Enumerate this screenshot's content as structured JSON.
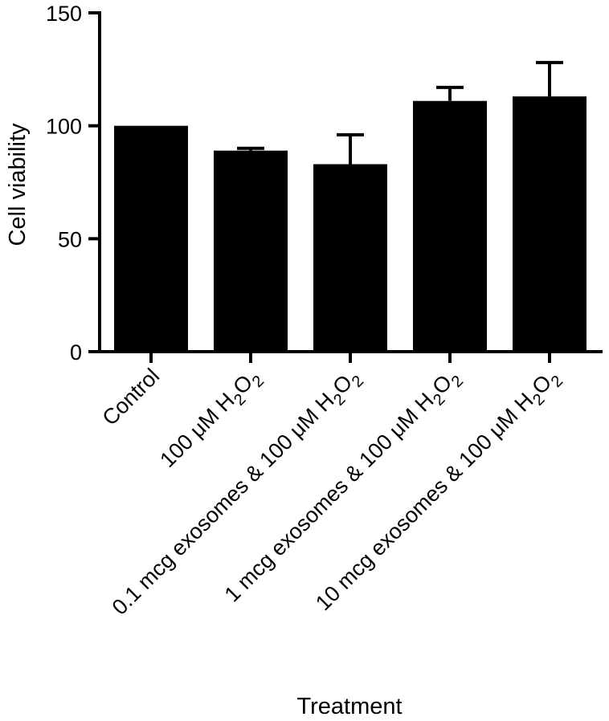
{
  "chart_data": {
    "type": "bar",
    "categories": [
      {
        "name": "control",
        "text": "Control",
        "formula": false
      },
      {
        "name": "h2o2-100",
        "text": "100 μM H",
        "formula": true
      },
      {
        "name": "exo-0-1",
        "text": "0.1 mcg exosomes & 100 μM H",
        "formula": true
      },
      {
        "name": "exo-1",
        "text": "1 mcg exosomes & 100 μM H",
        "formula": true
      },
      {
        "name": "exo-10",
        "text": "10 mcg exosomes & 100 μM H",
        "formula": true
      }
    ],
    "formula_parts": {
      "subscript": "2",
      "element": "O"
    },
    "values": [
      100,
      89,
      83,
      111,
      113
    ],
    "error_upper": [
      100,
      90,
      96,
      117,
      128
    ],
    "xlabel": "Treatment",
    "ylabel": "Cell viability",
    "ylim": [
      0,
      150
    ],
    "yticks": [
      {
        "value": 0,
        "label": "0"
      },
      {
        "value": 50,
        "label": "50"
      },
      {
        "value": 100,
        "label": "100"
      },
      {
        "value": 150,
        "label": "150"
      }
    ],
    "bar_color": "#000000",
    "grid": false,
    "legend": "none"
  }
}
